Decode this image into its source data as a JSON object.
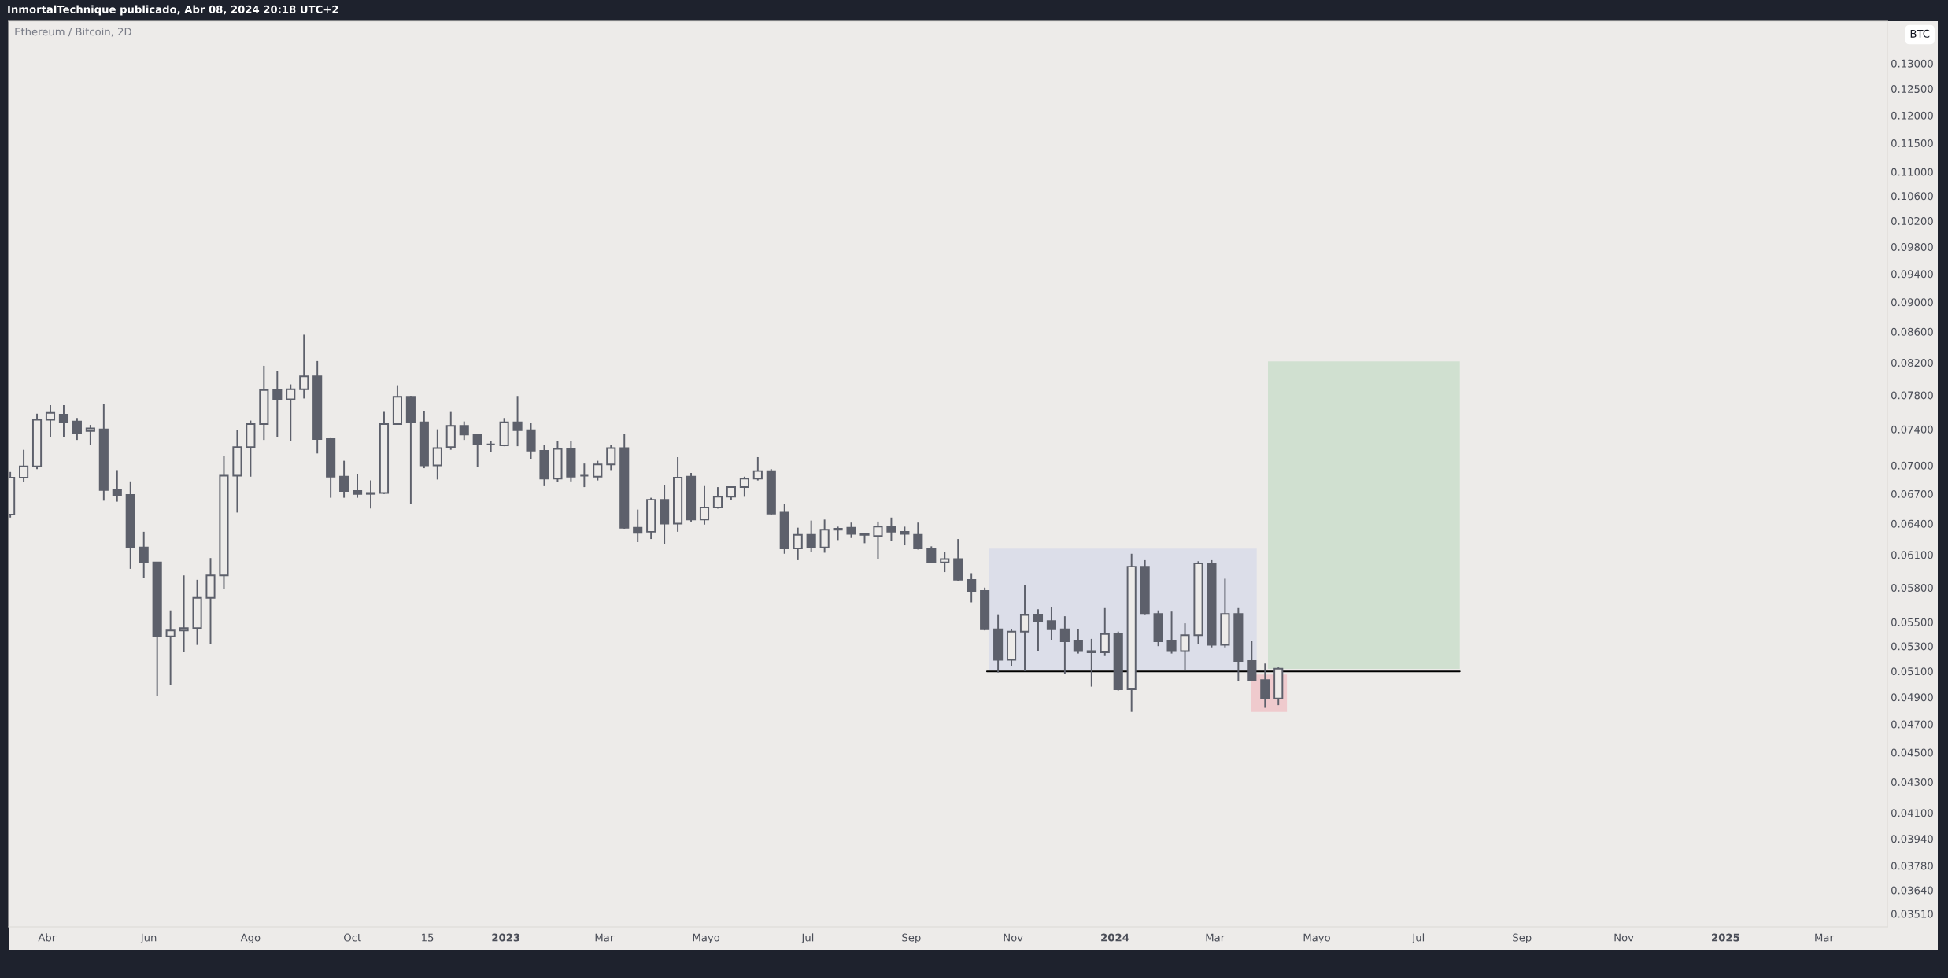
{
  "chart_data": {
    "type": "candlestick",
    "title": "Ethereum / Bitcoin, 2D",
    "ylabel": "BTC",
    "annotations": [
      "InmortalTechnique publicado, Abr 08, 2024 20:18 UTC+2"
    ],
    "color": "#5d606b",
    "log": true,
    "grid": false,
    "legend": false,
    "x": [
      "2022-03-10",
      "2022-03-18",
      "2022-03-26",
      "2022-04-03",
      "2022-04-11",
      "2022-04-19",
      "2022-04-27",
      "2022-05-05",
      "2022-05-13",
      "2022-05-21",
      "2022-05-29",
      "2022-06-06",
      "2022-06-14",
      "2022-06-22",
      "2022-06-30",
      "2022-07-08",
      "2022-07-16",
      "2022-07-24",
      "2022-08-01",
      "2022-08-09",
      "2022-08-17",
      "2022-08-25",
      "2022-09-02",
      "2022-09-10",
      "2022-09-18",
      "2022-09-26",
      "2022-10-04",
      "2022-10-12",
      "2022-10-20",
      "2022-10-28",
      "2022-11-05",
      "2022-11-13",
      "2022-11-21",
      "2022-11-29",
      "2022-12-07",
      "2022-12-15",
      "2022-12-23",
      "2022-12-31",
      "2023-01-08",
      "2023-01-16",
      "2023-01-24",
      "2023-02-01",
      "2023-02-09",
      "2023-02-17",
      "2023-02-25",
      "2023-03-05",
      "2023-03-13",
      "2023-03-21",
      "2023-03-29",
      "2023-04-06",
      "2023-04-14",
      "2023-04-22",
      "2023-04-30",
      "2023-05-08",
      "2023-05-16",
      "2023-05-24",
      "2023-06-01",
      "2023-06-09",
      "2023-06-17",
      "2023-06-25",
      "2023-07-03",
      "2023-07-11",
      "2023-07-19",
      "2023-07-27",
      "2023-08-04",
      "2023-08-12",
      "2023-08-20",
      "2023-08-28",
      "2023-09-05",
      "2023-09-13",
      "2023-09-21",
      "2023-09-29",
      "2023-10-07",
      "2023-10-15",
      "2023-10-23",
      "2023-10-31",
      "2023-11-08",
      "2023-11-16",
      "2023-11-24",
      "2023-12-02",
      "2023-12-10",
      "2023-12-18",
      "2023-12-26",
      "2024-01-03",
      "2024-01-11",
      "2024-01-19",
      "2024-01-27",
      "2024-02-04",
      "2024-02-12",
      "2024-02-20",
      "2024-02-28",
      "2024-03-07",
      "2024-03-15",
      "2024-03-23",
      "2024-03-31",
      "2024-04-08"
    ],
    "ohlc": [
      [
        0.0649,
        0.0693,
        0.0646,
        0.0687
      ],
      [
        0.0687,
        0.0717,
        0.0682,
        0.0699
      ],
      [
        0.0699,
        0.0758,
        0.0696,
        0.0751
      ],
      [
        0.0751,
        0.0768,
        0.0731,
        0.0759
      ],
      [
        0.0757,
        0.0768,
        0.0731,
        0.0748
      ],
      [
        0.0749,
        0.0753,
        0.0728,
        0.0736
      ],
      [
        0.0738,
        0.0745,
        0.0722,
        0.0741
      ],
      [
        0.074,
        0.0769,
        0.0663,
        0.0674
      ],
      [
        0.0674,
        0.0695,
        0.0662,
        0.0669
      ],
      [
        0.0669,
        0.0683,
        0.0597,
        0.0617
      ],
      [
        0.0617,
        0.0632,
        0.0589,
        0.0603
      ],
      [
        0.0603,
        0.0603,
        0.0491,
        0.0538
      ],
      [
        0.0538,
        0.056,
        0.0499,
        0.0543
      ],
      [
        0.0543,
        0.0591,
        0.0525,
        0.0545
      ],
      [
        0.0545,
        0.0587,
        0.0531,
        0.0571
      ],
      [
        0.0571,
        0.0607,
        0.0532,
        0.0591
      ],
      [
        0.0591,
        0.071,
        0.0579,
        0.0689
      ],
      [
        0.0689,
        0.0739,
        0.0651,
        0.072
      ],
      [
        0.072,
        0.075,
        0.0688,
        0.0746
      ],
      [
        0.0746,
        0.0816,
        0.0728,
        0.0786
      ],
      [
        0.0786,
        0.081,
        0.0731,
        0.0775
      ],
      [
        0.0775,
        0.0793,
        0.0727,
        0.0787
      ],
      [
        0.0787,
        0.0856,
        0.0776,
        0.0803
      ],
      [
        0.0803,
        0.0822,
        0.0713,
        0.0729
      ],
      [
        0.0729,
        0.073,
        0.0666,
        0.0688
      ],
      [
        0.0688,
        0.0705,
        0.0666,
        0.0673
      ],
      [
        0.0673,
        0.0691,
        0.0666,
        0.067
      ],
      [
        0.067,
        0.0684,
        0.0655,
        0.0671
      ],
      [
        0.0671,
        0.076,
        0.067,
        0.0746
      ],
      [
        0.0746,
        0.0792,
        0.0746,
        0.0778
      ],
      [
        0.0778,
        0.0779,
        0.066,
        0.0748
      ],
      [
        0.0748,
        0.0761,
        0.0697,
        0.07
      ],
      [
        0.07,
        0.074,
        0.0685,
        0.0719
      ],
      [
        0.072,
        0.076,
        0.0717,
        0.0744
      ],
      [
        0.0744,
        0.0749,
        0.0728,
        0.0734
      ],
      [
        0.0734,
        0.0735,
        0.0698,
        0.0723
      ],
      [
        0.0723,
        0.0727,
        0.0715,
        0.0723
      ],
      [
        0.0722,
        0.0753,
        0.0721,
        0.0748
      ],
      [
        0.0748,
        0.0779,
        0.0721,
        0.0739
      ],
      [
        0.0739,
        0.0747,
        0.0707,
        0.0716
      ],
      [
        0.0716,
        0.0722,
        0.0678,
        0.0686
      ],
      [
        0.0686,
        0.0727,
        0.0682,
        0.0718
      ],
      [
        0.0718,
        0.0727,
        0.0683,
        0.0688
      ],
      [
        0.0689,
        0.0702,
        0.0677,
        0.0689
      ],
      [
        0.0688,
        0.0705,
        0.0684,
        0.0701
      ],
      [
        0.0701,
        0.0722,
        0.0695,
        0.0719
      ],
      [
        0.0719,
        0.0735,
        0.0635,
        0.0636
      ],
      [
        0.0636,
        0.0654,
        0.0622,
        0.0631
      ],
      [
        0.0632,
        0.0666,
        0.0625,
        0.0664
      ],
      [
        0.0664,
        0.0679,
        0.062,
        0.064
      ],
      [
        0.064,
        0.0709,
        0.0632,
        0.0687
      ],
      [
        0.0688,
        0.0692,
        0.0642,
        0.0644
      ],
      [
        0.0644,
        0.0678,
        0.0639,
        0.0656
      ],
      [
        0.0656,
        0.0677,
        0.0655,
        0.0667
      ],
      [
        0.0667,
        0.0677,
        0.0664,
        0.0677
      ],
      [
        0.0677,
        0.0688,
        0.0667,
        0.0686
      ],
      [
        0.0686,
        0.0709,
        0.0684,
        0.0694
      ],
      [
        0.0694,
        0.0696,
        0.0649,
        0.065
      ],
      [
        0.0651,
        0.066,
        0.0611,
        0.0616
      ],
      [
        0.0616,
        0.0636,
        0.0605,
        0.0629
      ],
      [
        0.0629,
        0.0643,
        0.0613,
        0.0617
      ],
      [
        0.0617,
        0.0644,
        0.0612,
        0.0634
      ],
      [
        0.0634,
        0.0637,
        0.0624,
        0.0635
      ],
      [
        0.0636,
        0.0641,
        0.0626,
        0.063
      ],
      [
        0.063,
        0.0631,
        0.0621,
        0.0629
      ],
      [
        0.0628,
        0.0642,
        0.0606,
        0.0637
      ],
      [
        0.0637,
        0.0646,
        0.0623,
        0.0632
      ],
      [
        0.0632,
        0.0637,
        0.0619,
        0.063
      ],
      [
        0.0629,
        0.0641,
        0.0615,
        0.0616
      ],
      [
        0.0616,
        0.0618,
        0.0602,
        0.0603
      ],
      [
        0.0603,
        0.0613,
        0.0594,
        0.0606
      ],
      [
        0.0606,
        0.0625,
        0.0586,
        0.0587
      ],
      [
        0.0587,
        0.0593,
        0.0567,
        0.0577
      ],
      [
        0.0577,
        0.058,
        0.0543,
        0.0544
      ],
      [
        0.0544,
        0.0556,
        0.0509,
        0.0519
      ],
      [
        0.0519,
        0.0544,
        0.0514,
        0.0542
      ],
      [
        0.0542,
        0.0582,
        0.051,
        0.0556
      ],
      [
        0.0556,
        0.0561,
        0.0526,
        0.0551
      ],
      [
        0.0551,
        0.0563,
        0.0535,
        0.0544
      ],
      [
        0.0544,
        0.0555,
        0.0508,
        0.0534
      ],
      [
        0.0534,
        0.0544,
        0.0524,
        0.0526
      ],
      [
        0.0526,
        0.0536,
        0.0498,
        0.0525
      ],
      [
        0.0525,
        0.0562,
        0.0522,
        0.054
      ],
      [
        0.054,
        0.0542,
        0.0495,
        0.0496
      ],
      [
        0.0496,
        0.0611,
        0.0479,
        0.0599
      ],
      [
        0.0599,
        0.0605,
        0.0556,
        0.0557
      ],
      [
        0.0557,
        0.056,
        0.053,
        0.0534
      ],
      [
        0.0534,
        0.0559,
        0.0524,
        0.0526
      ],
      [
        0.0526,
        0.0549,
        0.0511,
        0.0539
      ],
      [
        0.0539,
        0.0604,
        0.0532,
        0.0602
      ],
      [
        0.0602,
        0.0605,
        0.0529,
        0.0531
      ],
      [
        0.0531,
        0.0588,
        0.0529,
        0.0557
      ],
      [
        0.0557,
        0.0562,
        0.0502,
        0.0518
      ],
      [
        0.0518,
        0.0534,
        0.0502,
        0.0503
      ],
      [
        0.0503,
        0.0516,
        0.0482,
        0.0489
      ],
      [
        0.0489,
        0.0513,
        0.0484,
        0.0512
      ]
    ],
    "xlim": [
      "2022-03-09",
      "2025-04-08"
    ],
    "xticks": [
      {
        "value": "2022-04-01",
        "label": "Abr"
      },
      {
        "value": "2022-06-01",
        "label": "Jun"
      },
      {
        "value": "2022-08-01",
        "label": "Ago"
      },
      {
        "value": "2022-10-01",
        "label": "Oct"
      },
      {
        "value": "2022-11-15",
        "label": "15"
      },
      {
        "value": "2023-01-01",
        "label": "2023"
      },
      {
        "value": "2023-03-01",
        "label": "Mar"
      },
      {
        "value": "2023-05-01",
        "label": "Mayo"
      },
      {
        "value": "2023-07-01",
        "label": "Jul"
      },
      {
        "value": "2023-09-01",
        "label": "Sep"
      },
      {
        "value": "2023-11-01",
        "label": "Nov"
      },
      {
        "value": "2024-01-01",
        "label": "2024"
      },
      {
        "value": "2024-03-01",
        "label": "Mar"
      },
      {
        "value": "2024-05-01",
        "label": "Mayo"
      },
      {
        "value": "2024-07-01",
        "label": "Jul"
      },
      {
        "value": "2024-09-01",
        "label": "Sep"
      },
      {
        "value": "2024-11-01",
        "label": "Nov"
      },
      {
        "value": "2025-01-01",
        "label": "2025"
      },
      {
        "value": "2025-03-01",
        "label": "Mar"
      }
    ],
    "ylim": [
      0.0344,
      0.1387
    ],
    "yticks": [
      {
        "value": 0.13,
        "label": "0.13000"
      },
      {
        "value": 0.125,
        "label": "0.12500"
      },
      {
        "value": 0.12,
        "label": "0.12000"
      },
      {
        "value": 0.115,
        "label": "0.11500"
      },
      {
        "value": 0.11,
        "label": "0.11000"
      },
      {
        "value": 0.106,
        "label": "0.10600"
      },
      {
        "value": 0.102,
        "label": "0.10200"
      },
      {
        "value": 0.098,
        "label": "0.09800"
      },
      {
        "value": 0.094,
        "label": "0.09400"
      },
      {
        "value": 0.09,
        "label": "0.09000"
      },
      {
        "value": 0.086,
        "label": "0.08600"
      },
      {
        "value": 0.082,
        "label": "0.08200"
      },
      {
        "value": 0.078,
        "label": "0.07800"
      },
      {
        "value": 0.074,
        "label": "0.07400"
      },
      {
        "value": 0.07,
        "label": "0.07000"
      },
      {
        "value": 0.067,
        "label": "0.06700"
      },
      {
        "value": 0.064,
        "label": "0.06400"
      },
      {
        "value": 0.061,
        "label": "0.06100"
      },
      {
        "value": 0.058,
        "label": "0.05800"
      },
      {
        "value": 0.055,
        "label": "0.05500"
      },
      {
        "value": 0.053,
        "label": "0.05300"
      },
      {
        "value": 0.051,
        "label": "0.05100"
      },
      {
        "value": 0.049,
        "label": "0.04900"
      },
      {
        "value": 0.047,
        "label": "0.04700"
      },
      {
        "value": 0.045,
        "label": "0.04500"
      },
      {
        "value": 0.043,
        "label": "0.04300"
      },
      {
        "value": 0.041,
        "label": "0.04100"
      },
      {
        "value": 0.0394,
        "label": "0.03940"
      },
      {
        "value": 0.0378,
        "label": "0.03780"
      },
      {
        "value": 0.0364,
        "label": "0.03640"
      },
      {
        "value": 0.0351,
        "label": "0.03510"
      }
    ]
  }
}
